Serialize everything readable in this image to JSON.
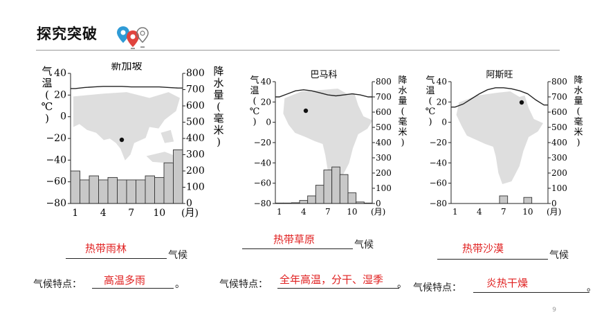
{
  "page": {
    "title": "探究突破",
    "page_number": "9"
  },
  "colors": {
    "answer": "#e02020",
    "bar_fill": "#c8c8c8",
    "map_fill": "#dedede",
    "pin_blue": "#2f9bd6",
    "pin_red": "#e0443e"
  },
  "charts": [
    {
      "name": "新加坡",
      "left_axis_label": "气温(℃)",
      "right_axis_label": "降水量(毫米)",
      "x_unit": "(月)",
      "temp_ticks": [
        "40",
        "20",
        "0",
        "−20",
        "−40",
        "−60",
        "−80"
      ],
      "precip_ticks": [
        "800",
        "700",
        "600",
        "500",
        "400",
        "300",
        "200",
        "100",
        "0"
      ],
      "month_ticks": [
        "1",
        "4",
        "7",
        "10"
      ],
      "map": "asia",
      "chart_data": {
        "type": "bar+line",
        "categories": [
          "1",
          "2",
          "3",
          "4",
          "5",
          "6",
          "7",
          "8",
          "9",
          "10",
          "11",
          "12"
        ],
        "precipitation_mm": [
          200,
          145,
          170,
          145,
          160,
          145,
          145,
          145,
          170,
          160,
          250,
          330
        ],
        "temperature_c": [
          26,
          27,
          27.5,
          28,
          28,
          28,
          27.5,
          27.5,
          27.5,
          27.5,
          27,
          26.5
        ],
        "ylim_temp": [
          -80,
          40
        ],
        "ylim_precip": [
          0,
          800
        ]
      }
    },
    {
      "name": "巴马科",
      "left_axis_label": "气温(℃)",
      "right_axis_label": "降水量(毫米)",
      "x_unit": "(月)",
      "temp_ticks": [
        "40",
        "20",
        "0",
        "−20",
        "−40",
        "−60",
        "−80"
      ],
      "precip_ticks": [
        "800",
        "700",
        "600",
        "500",
        "400",
        "300",
        "200",
        "100",
        "0"
      ],
      "month_ticks": [
        "1",
        "4",
        "7",
        "10"
      ],
      "map": "africa-west",
      "chart_data": {
        "type": "bar+line",
        "categories": [
          "1",
          "2",
          "3",
          "4",
          "5",
          "6",
          "7",
          "8",
          "9",
          "10",
          "11",
          "12"
        ],
        "precipitation_mm": [
          3,
          3,
          5,
          20,
          50,
          120,
          220,
          240,
          190,
          70,
          10,
          3
        ],
        "temperature_c": [
          25,
          28,
          31,
          32,
          31,
          29,
          27,
          26,
          27,
          28,
          27,
          25
        ],
        "ylim_temp": [
          -80,
          40
        ],
        "ylim_precip": [
          0,
          800
        ]
      }
    },
    {
      "name": "阿斯旺",
      "left_axis_label": "气温(℃)",
      "right_axis_label": "降水量(毫米)",
      "x_unit": "(月)",
      "temp_ticks": [
        "40",
        "20",
        "0",
        "−20",
        "−40",
        "−60",
        "−80"
      ],
      "precip_ticks": [
        "800",
        "700",
        "600",
        "500",
        "400",
        "300",
        "200",
        "100",
        "0"
      ],
      "month_ticks": [
        "1",
        "4",
        "7",
        "10"
      ],
      "map": "africa-east",
      "chart_data": {
        "type": "bar+line",
        "categories": [
          "1",
          "2",
          "3",
          "4",
          "5",
          "6",
          "7",
          "8",
          "9",
          "10",
          "11",
          "12"
        ],
        "precipitation_mm": [
          0,
          0,
          0,
          0,
          0,
          0,
          50,
          0,
          0,
          40,
          0,
          0
        ],
        "temperature_c": [
          15,
          18,
          23,
          28,
          32,
          34,
          34,
          33,
          31,
          28,
          22,
          17
        ],
        "ylim_temp": [
          -80,
          40
        ],
        "ylim_precip": [
          0,
          800
        ]
      }
    }
  ],
  "answers": [
    {
      "climate": "热带雨林",
      "suffix": "气候",
      "prompt": "气候特点：",
      "feature": "高温多雨",
      "end": "。"
    },
    {
      "climate": "热带草原",
      "suffix": "气候",
      "prompt": "气候特点：",
      "feature": "全年高温，分干、湿季",
      "end": "。"
    },
    {
      "climate": "热带沙漠",
      "suffix": "气候",
      "prompt": "气候特点：",
      "feature": "炎热干燥",
      "end": "。"
    }
  ]
}
